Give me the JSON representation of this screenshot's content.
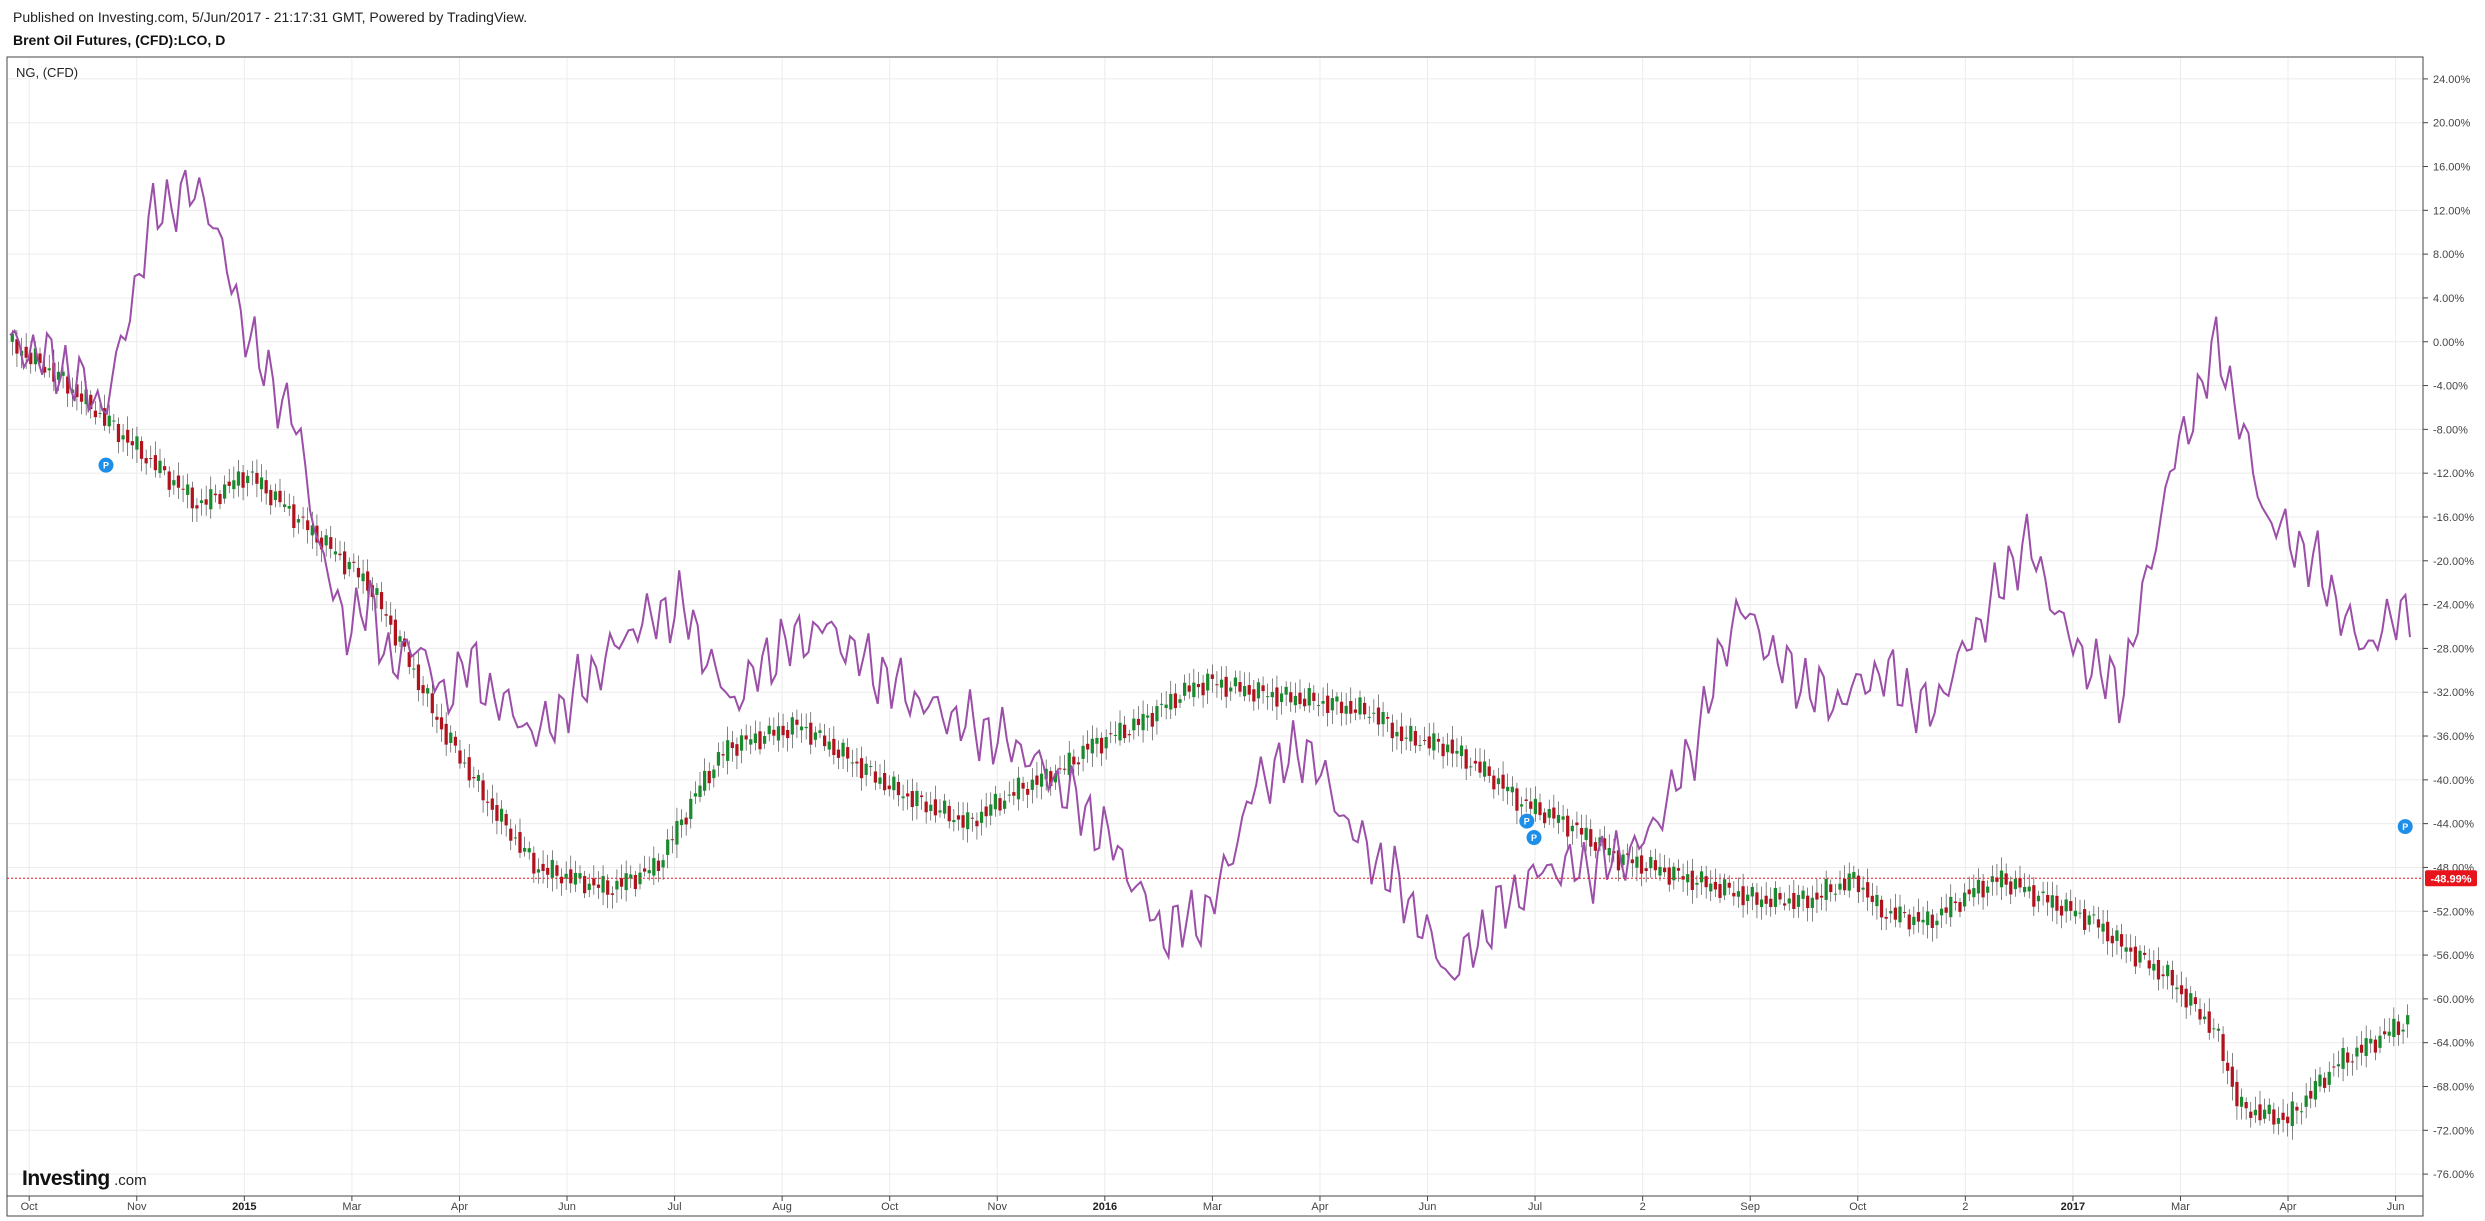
{
  "header": {
    "published": "Published on Investing.com, 5/Jun/2017 - 21:17:31 GMT, Powered by TradingView.",
    "title": "Brent Oil Futures, (CFD):LCO, D"
  },
  "overlay_symbol": "NG,  (CFD)",
  "branding": {
    "logo": "Investing",
    "suffix": ".com"
  },
  "price_marker": {
    "label": "-48.99%",
    "color": "#e8141c"
  },
  "colors": {
    "up": "#1a8a2e",
    "down": "#b0131e",
    "compare_line": "#9b4fa8",
    "marker": "#e8141c",
    "flag": "#1e8fe8"
  },
  "chart_data": {
    "type": "line",
    "x_axis": {
      "labels": [
        "Oct",
        "Nov",
        "2015",
        "Mar",
        "Apr",
        "Jun",
        "Jul",
        "Aug",
        "Oct",
        "Nov",
        "2016",
        "Mar",
        "Apr",
        "Jun",
        "Jul",
        "2",
        "Sep",
        "Oct",
        "2",
        "2017",
        "Mar",
        "Apr",
        "Jun"
      ],
      "bold": [
        "2015",
        "2016",
        "2017"
      ]
    },
    "y_axis": {
      "unit": "%",
      "range": [
        -78,
        26
      ],
      "ticks": [
        "24.00%",
        "20.00%",
        "16.00%",
        "12.00%",
        "8.00%",
        "4.00%",
        "0.00%",
        "-4.00%",
        "-8.00%",
        "-12.00%",
        "-16.00%",
        "-20.00%",
        "-24.00%",
        "-28.00%",
        "-32.00%",
        "-36.00%",
        "-40.00%",
        "-44.00%",
        "-48.00%",
        "-52.00%",
        "-56.00%",
        "-60.00%",
        "-64.00%",
        "-68.00%",
        "-72.00%",
        "-76.00%"
      ]
    },
    "series": [
      {
        "name": "Brent Oil Futures, (CFD):LCO, D",
        "style": "candles",
        "x": [
          0,
          2,
          5,
          8,
          10,
          13,
          15,
          16,
          18,
          20,
          22,
          25,
          27,
          29,
          30,
          33,
          35,
          37,
          40,
          42,
          44,
          45,
          47,
          49,
          50,
          52,
          55,
          57,
          58,
          60,
          62,
          63,
          65,
          67,
          70,
          73,
          75,
          77,
          78,
          80,
          82,
          83,
          85,
          87,
          88,
          90,
          92,
          93,
          95,
          97,
          100
        ],
        "values": [
          0,
          -3,
          -9,
          -15,
          -12,
          -18,
          -22,
          -26,
          -35,
          -42,
          -48,
          -50,
          -48,
          -40,
          -37,
          -35,
          -38,
          -41,
          -44,
          -41,
          -39,
          -37,
          -35,
          -32,
          -31,
          -32,
          -33,
          -34,
          -36,
          -37,
          -40,
          -42,
          -44,
          -47,
          -49,
          -51,
          -51,
          -49,
          -52,
          -53,
          -50,
          -49,
          -51,
          -53,
          -55,
          -58,
          -63,
          -70,
          -71,
          -66,
          -62
        ]
      },
      {
        "name": "NG,  (CFD)",
        "style": "line",
        "x": [
          0,
          2,
          4,
          6,
          8,
          10,
          12,
          13,
          14,
          15,
          16,
          17,
          18,
          19,
          20,
          22,
          24,
          26,
          28,
          30,
          32,
          34,
          36,
          38,
          40,
          42,
          44,
          46,
          48,
          50,
          52,
          54,
          56,
          58,
          60,
          62,
          64,
          66,
          68,
          70,
          72,
          74,
          76,
          78,
          80,
          82,
          84,
          86,
          88,
          90,
          92,
          94,
          96,
          98,
          100
        ],
        "values": [
          0,
          -2,
          -6,
          12,
          14,
          0,
          -8,
          -20,
          -26,
          -24,
          -30,
          -27,
          -33,
          -29,
          -32,
          -36,
          -31,
          -26,
          -24,
          -33,
          -28,
          -26,
          -30,
          -33,
          -35,
          -37,
          -41,
          -46,
          -54,
          -52,
          -40,
          -37,
          -45,
          -50,
          -58,
          -52,
          -48,
          -48,
          -46,
          -38,
          -24,
          -30,
          -33,
          -30,
          -34,
          -26,
          -18,
          -28,
          -32,
          -12,
          0,
          -16,
          -20,
          -28,
          -24
        ]
      }
    ]
  }
}
